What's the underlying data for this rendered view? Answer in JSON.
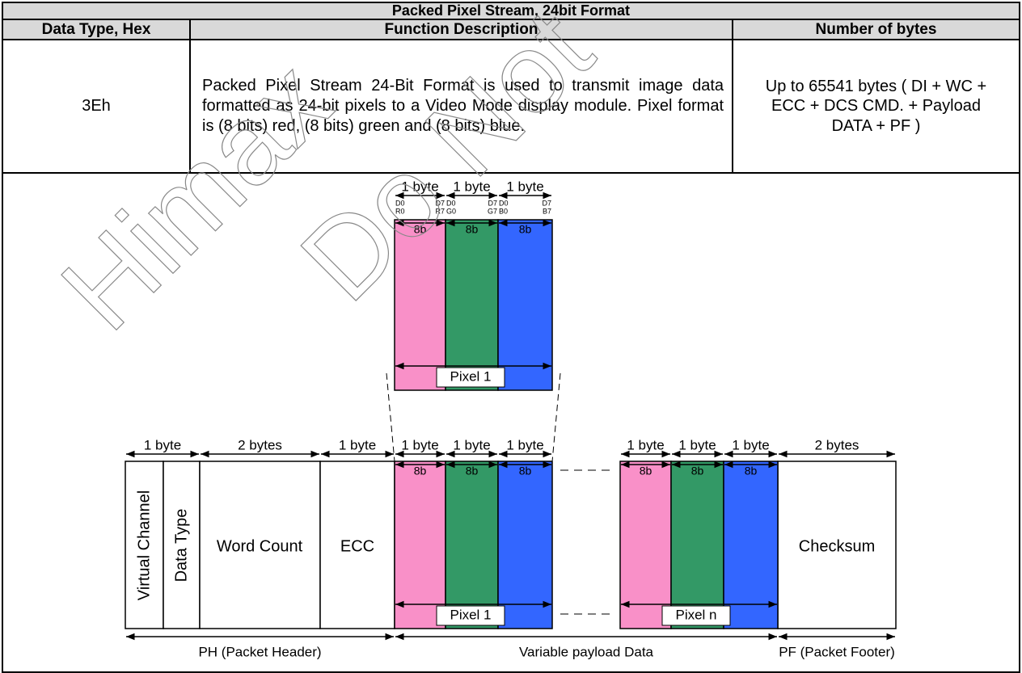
{
  "table": {
    "title": "Packed Pixel Stream, 24bit Format",
    "headers": [
      "Data Type, Hex",
      "Function Description",
      "Number of bytes"
    ],
    "rows": [
      [
        "3Eh",
        "Packed Pixel Stream 24-Bit Format is used to transmit image data formatted as 24-bit pixels to a Video Mode display module. Pixel format is (8 bits) red, (8 bits) green and (8 bits) blue.",
        "Up to 65541 bytes ( DI + WC + ECC + DCS CMD. + Payload DATA + PF )"
      ]
    ]
  },
  "diagram": {
    "pixel_detail": {
      "byte_labels": [
        "1 byte",
        "1 byte",
        "1 byte"
      ],
      "bit_labels": [
        [
          "D0",
          "R0",
          "D7",
          "R7"
        ],
        [
          "D0",
          "G0",
          "D7",
          "G7"
        ],
        [
          "D0",
          "B0",
          "D7",
          "B7"
        ]
      ],
      "bit_counts": [
        "8b",
        "8b",
        "8b"
      ],
      "label": "Pixel 1"
    },
    "packet": {
      "header_byte_labels": [
        "1 byte",
        "2 bytes",
        "1 byte"
      ],
      "fields": [
        "Virtual Channel",
        "Data Type",
        "Word Count",
        "ECC"
      ],
      "pixels": [
        {
          "byte_labels": [
            "1 byte",
            "1 byte",
            "1 byte"
          ],
          "bit_counts": [
            "8b",
            "8b",
            "8b"
          ],
          "label": "Pixel 1"
        },
        {
          "byte_labels": [
            "1 byte",
            "1 byte",
            "1 byte"
          ],
          "bit_counts": [
            "8b",
            "8b",
            "8b"
          ],
          "label": "Pixel n"
        }
      ],
      "footer_byte_label": "2 bytes",
      "footer_field": "Checksum",
      "sections": [
        "PH (Packet Header)",
        "Variable payload Data",
        "PF (Packet Footer)"
      ]
    },
    "watermark": [
      "Himax",
      "Do Not"
    ]
  }
}
